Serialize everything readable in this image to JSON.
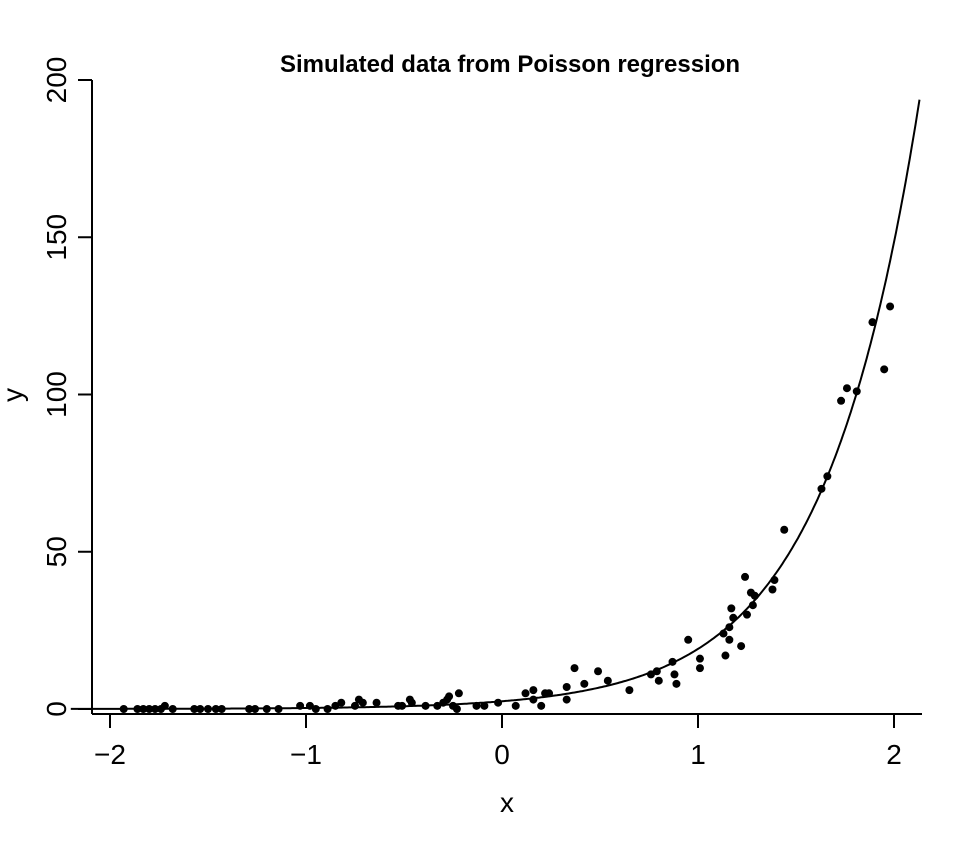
{
  "chart_data": {
    "type": "scatter",
    "title": "Simulated data from Poisson regression",
    "xlabel": "x",
    "ylabel": "y",
    "xlim": [
      -2.05,
      2.13
    ],
    "ylim": [
      0,
      200
    ],
    "x_ticks": [
      -2,
      -1,
      0,
      1,
      2
    ],
    "x_tick_labels": [
      "−2",
      "−1",
      "0",
      "1",
      "2"
    ],
    "y_ticks": [
      0,
      50,
      100,
      150,
      200
    ],
    "y_tick_labels": [
      "0",
      "50",
      "100",
      "150",
      "200"
    ],
    "grid": false,
    "fitted_curve": {
      "formula": "exp(a + b*x)",
      "a": 0.9,
      "b": 2.05
    },
    "points": [
      [
        -1.93,
        0
      ],
      [
        -1.86,
        0
      ],
      [
        -1.83,
        0
      ],
      [
        -1.8,
        0
      ],
      [
        -1.77,
        0
      ],
      [
        -1.74,
        0
      ],
      [
        -1.72,
        1
      ],
      [
        -1.68,
        0
      ],
      [
        -1.57,
        0
      ],
      [
        -1.54,
        0
      ],
      [
        -1.5,
        0
      ],
      [
        -1.46,
        0
      ],
      [
        -1.43,
        0
      ],
      [
        -1.29,
        0
      ],
      [
        -1.26,
        0
      ],
      [
        -1.2,
        0
      ],
      [
        -1.14,
        0
      ],
      [
        -1.03,
        1
      ],
      [
        -0.98,
        1
      ],
      [
        -0.95,
        0
      ],
      [
        -0.89,
        0
      ],
      [
        -0.85,
        1
      ],
      [
        -0.82,
        2
      ],
      [
        -0.75,
        1
      ],
      [
        -0.73,
        3
      ],
      [
        -0.71,
        2
      ],
      [
        -0.64,
        2
      ],
      [
        -0.53,
        1
      ],
      [
        -0.51,
        1
      ],
      [
        -0.47,
        3
      ],
      [
        -0.46,
        2
      ],
      [
        -0.39,
        1
      ],
      [
        -0.33,
        1
      ],
      [
        -0.3,
        2
      ],
      [
        -0.28,
        3
      ],
      [
        -0.27,
        4
      ],
      [
        -0.25,
        1
      ],
      [
        -0.23,
        0
      ],
      [
        -0.22,
        5
      ],
      [
        -0.13,
        1
      ],
      [
        -0.09,
        1
      ],
      [
        -0.02,
        2
      ],
      [
        0.07,
        1
      ],
      [
        0.12,
        5
      ],
      [
        0.16,
        6
      ],
      [
        0.16,
        3
      ],
      [
        0.2,
        1
      ],
      [
        0.22,
        5
      ],
      [
        0.24,
        5
      ],
      [
        0.33,
        7
      ],
      [
        0.33,
        3
      ],
      [
        0.37,
        13
      ],
      [
        0.42,
        8
      ],
      [
        0.49,
        12
      ],
      [
        0.54,
        9
      ],
      [
        0.65,
        6
      ],
      [
        0.76,
        11
      ],
      [
        0.79,
        12
      ],
      [
        0.8,
        9
      ],
      [
        0.87,
        15
      ],
      [
        0.88,
        11
      ],
      [
        0.89,
        8
      ],
      [
        0.95,
        22
      ],
      [
        1.01,
        16
      ],
      [
        1.01,
        13
      ],
      [
        1.13,
        24
      ],
      [
        1.14,
        17
      ],
      [
        1.16,
        22
      ],
      [
        1.16,
        26
      ],
      [
        1.17,
        32
      ],
      [
        1.18,
        29
      ],
      [
        1.22,
        20
      ],
      [
        1.24,
        42
      ],
      [
        1.25,
        30
      ],
      [
        1.27,
        37
      ],
      [
        1.28,
        33
      ],
      [
        1.29,
        36
      ],
      [
        1.38,
        38
      ],
      [
        1.39,
        41
      ],
      [
        1.44,
        57
      ],
      [
        1.63,
        70
      ],
      [
        1.66,
        74
      ],
      [
        1.73,
        98
      ],
      [
        1.76,
        102
      ],
      [
        1.81,
        101
      ],
      [
        1.89,
        123
      ],
      [
        1.95,
        108
      ],
      [
        1.98,
        128
      ]
    ]
  }
}
